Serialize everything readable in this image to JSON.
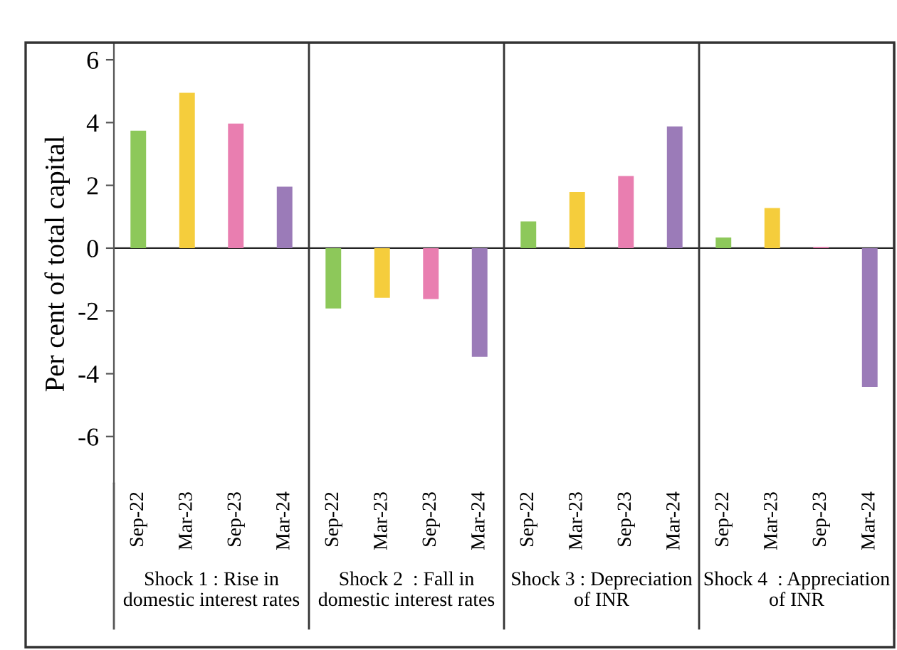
{
  "chart_data": {
    "type": "bar",
    "ylabel": "Per cent of total capital",
    "categories": [
      "Sep-22",
      "Mar-23",
      "Sep-23",
      "Mar-24",
      "Sep-22",
      "Mar-23",
      "Sep-23",
      "Mar-24",
      "Sep-22",
      "Mar-23",
      "Sep-23",
      "Mar-24",
      "Sep-22",
      "Mar-23",
      "Sep-23",
      "Mar-24"
    ],
    "values": [
      3.74,
      4.95,
      3.97,
      1.96,
      -1.92,
      -1.58,
      -1.62,
      -3.46,
      0.85,
      1.79,
      2.3,
      3.88,
      0.34,
      1.28,
      0.04,
      -4.42
    ],
    "colors": [
      "#8dc85a",
      "#f5cd3c",
      "#e97eb0",
      "#9b7bb8",
      "#8dc85a",
      "#f5cd3c",
      "#e97eb0",
      "#9b7bb8",
      "#8dc85a",
      "#f5cd3c",
      "#e97eb0",
      "#9b7bb8",
      "#8dc85a",
      "#f5cd3c",
      "#e97eb0",
      "#9b7bb8"
    ],
    "ylim": [
      -7.5,
      6.5
    ],
    "yticks": [
      -6,
      -4,
      -2,
      0,
      2,
      4,
      6
    ],
    "grid": false,
    "legend": false,
    "annotations": [
      "Shock 1 : Rise in\ndomestic interest rates",
      "Shock 2  : Fall in\ndomestic interest rates",
      "Shock 3 : Depreciation\nof INR",
      "Shock 4  : Appreciation\nof INR"
    ]
  }
}
